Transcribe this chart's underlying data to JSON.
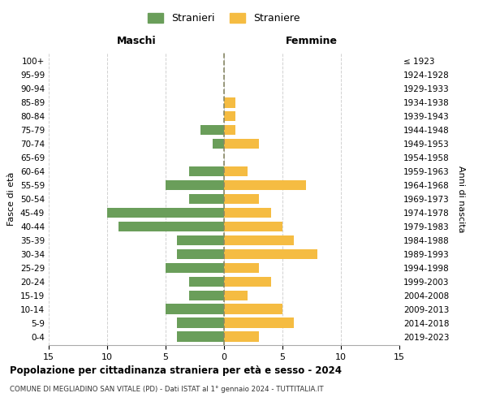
{
  "age_groups": [
    "0-4",
    "5-9",
    "10-14",
    "15-19",
    "20-24",
    "25-29",
    "30-34",
    "35-39",
    "40-44",
    "45-49",
    "50-54",
    "55-59",
    "60-64",
    "65-69",
    "70-74",
    "75-79",
    "80-84",
    "85-89",
    "90-94",
    "95-99",
    "100+"
  ],
  "birth_years": [
    "2019-2023",
    "2014-2018",
    "2009-2013",
    "2004-2008",
    "1999-2003",
    "1994-1998",
    "1989-1993",
    "1984-1988",
    "1979-1983",
    "1974-1978",
    "1969-1973",
    "1964-1968",
    "1959-1963",
    "1954-1958",
    "1949-1953",
    "1944-1948",
    "1939-1943",
    "1934-1938",
    "1929-1933",
    "1924-1928",
    "≤ 1923"
  ],
  "maschi": [
    4,
    4,
    5,
    3,
    3,
    5,
    4,
    4,
    9,
    10,
    3,
    5,
    3,
    0,
    1,
    2,
    0,
    0,
    0,
    0,
    0
  ],
  "femmine": [
    3,
    6,
    5,
    2,
    4,
    3,
    8,
    6,
    5,
    4,
    3,
    7,
    2,
    0,
    3,
    1,
    1,
    1,
    0,
    0,
    0
  ],
  "male_color": "#6a9e5a",
  "female_color": "#f5bc42",
  "background_color": "#ffffff",
  "grid_color": "#cccccc",
  "dashed_line_color": "#888866",
  "title": "Popolazione per cittadinanza straniera per età e sesso - 2024",
  "subtitle": "COMUNE DI MEGLIADINO SAN VITALE (PD) - Dati ISTAT al 1° gennaio 2024 - TUTTITALIA.IT",
  "xlabel_left": "Maschi",
  "xlabel_right": "Femmine",
  "ylabel_left": "Fasce di età",
  "ylabel_right": "Anni di nascita",
  "legend_male": "Stranieri",
  "legend_female": "Straniere",
  "xlim": 15,
  "xticks": [
    -15,
    -10,
    -5,
    0,
    5,
    10,
    15
  ],
  "xticklabels": [
    "15",
    "10",
    "5",
    "0",
    "5",
    "10",
    "15"
  ]
}
